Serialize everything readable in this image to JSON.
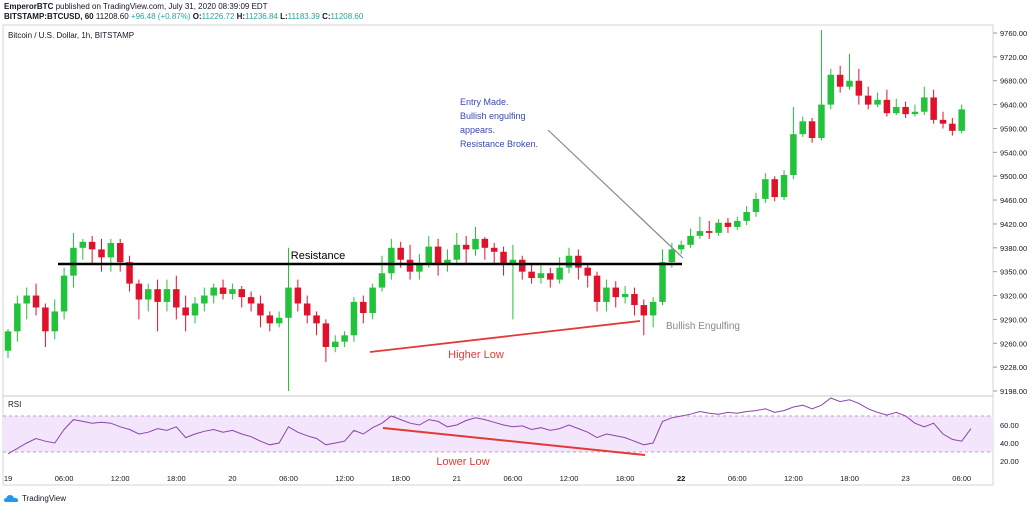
{
  "header": {
    "author": "EmperorBTC",
    "published": "published on TradingView.com, July 31, 2020 08:39:09 EDT",
    "symbol": "BITSTAMP:BTCUSD, 60",
    "price": "11208.60",
    "change": "+96.48 (+0.87%)",
    "o_label": "O:",
    "o_value": "11226.72",
    "h_label": "H:",
    "h_value": "11236.84",
    "l_label": "L:",
    "l_value": "11183.39",
    "c_label": "C:",
    "c_value": "11208.60"
  },
  "chart_title": "Bitcoin / U.S. Dollar, 1h, BITSTAMP",
  "branding": "TradingView",
  "colors": {
    "up": "#22c23b",
    "down": "#e0112b",
    "rsi_line": "#8e44ad",
    "rsi_band": "#f3e5fb",
    "annotation_blue": "#3949ab",
    "annotation_red": "#e53935"
  },
  "annotations": {
    "resistance": "Resistance",
    "entry_1": "Entry Made.",
    "entry_2": "Bullish engulfing",
    "entry_3": "appears.",
    "entry_4": "Resistance Broken.",
    "bullish_engulfing": "Bullish Engulfing",
    "higher_low": "Higher Low",
    "lower_low": "Lower Low",
    "rsi_label": "RSI"
  },
  "chart_data": [
    {
      "type": "candlestick",
      "title": "Bitcoin / U.S. Dollar, 1h, BITSTAMP",
      "y_ticks": [
        9198,
        9228,
        9260,
        9290,
        9320,
        9350,
        9380,
        9420,
        9460,
        9500,
        9540,
        9590,
        9640,
        9680,
        9720,
        9760
      ],
      "y_tick_labels": [
        "9198.00",
        "9228.00",
        "9260.00",
        "9290.00",
        "9320.00",
        "9350.00",
        "9380.00",
        "9420.00",
        "9460.00",
        "9500.00",
        "9540.00",
        "9590.00",
        "9640.00",
        "9680.00",
        "9720.00",
        "9760.00"
      ],
      "x_tick_labels": [
        "19",
        "06:00",
        "12:00",
        "18:00",
        "20",
        "06:00",
        "12:00",
        "18:00",
        "21",
        "06:00",
        "12:00",
        "18:00",
        "22",
        "06:00",
        "12:00",
        "18:00",
        "23",
        "06:00"
      ],
      "x_tick_index": [
        0,
        6,
        12,
        18,
        24,
        30,
        36,
        42,
        48,
        54,
        60,
        66,
        72,
        78,
        84,
        90,
        96,
        102
      ],
      "resistance_level": 9390,
      "candles": [
        [
          9250,
          9275,
          9240,
          9278
        ],
        [
          9275,
          9310,
          9262,
          9320
        ],
        [
          9310,
          9320,
          9290,
          9330
        ],
        [
          9320,
          9305,
          9295,
          9335
        ],
        [
          9305,
          9275,
          9255,
          9310
        ],
        [
          9275,
          9300,
          9265,
          9315
        ],
        [
          9300,
          9345,
          9290,
          9355
        ],
        [
          9345,
          9380,
          9330,
          9405
        ],
        [
          9380,
          9390,
          9365,
          9395
        ],
        [
          9390,
          9378,
          9360,
          9400
        ],
        [
          9378,
          9368,
          9350,
          9395
        ],
        [
          9368,
          9388,
          9350,
          9395
        ],
        [
          9388,
          9362,
          9350,
          9395
        ],
        [
          9362,
          9335,
          9325,
          9370
        ],
        [
          9335,
          9315,
          9290,
          9340
        ],
        [
          9315,
          9328,
          9300,
          9335
        ],
        [
          9328,
          9312,
          9275,
          9340
        ],
        [
          9312,
          9328,
          9300,
          9340
        ],
        [
          9328,
          9305,
          9290,
          9345
        ],
        [
          9305,
          9295,
          9275,
          9320
        ],
        [
          9295,
          9310,
          9285,
          9318
        ],
        [
          9310,
          9320,
          9300,
          9330
        ],
        [
          9320,
          9330,
          9310,
          9335
        ],
        [
          9330,
          9322,
          9315,
          9340
        ],
        [
          9322,
          9328,
          9315,
          9335
        ],
        [
          9328,
          9318,
          9305,
          9332
        ],
        [
          9318,
          9310,
          9300,
          9325
        ],
        [
          9310,
          9295,
          9280,
          9320
        ],
        [
          9295,
          9285,
          9275,
          9300
        ],
        [
          9285,
          9292,
          9280,
          9300
        ],
        [
          9292,
          9330,
          9198,
          9380
        ],
        [
          9330,
          9310,
          9300,
          9340
        ],
        [
          9310,
          9295,
          9285,
          9320
        ],
        [
          9295,
          9285,
          9270,
          9300
        ],
        [
          9285,
          9255,
          9235,
          9290
        ],
        [
          9255,
          9262,
          9248,
          9270
        ],
        [
          9262,
          9270,
          9255,
          9275
        ],
        [
          9270,
          9312,
          9262,
          9318
        ],
        [
          9312,
          9298,
          9285,
          9320
        ],
        [
          9298,
          9330,
          9290,
          9335
        ],
        [
          9330,
          9348,
          9325,
          9370
        ],
        [
          9348,
          9380,
          9340,
          9395
        ],
        [
          9380,
          9365,
          9355,
          9390
        ],
        [
          9365,
          9350,
          9340,
          9385
        ],
        [
          9350,
          9360,
          9340,
          9372
        ],
        [
          9360,
          9382,
          9355,
          9400
        ],
        [
          9382,
          9360,
          9345,
          9395
        ],
        [
          9360,
          9365,
          9350,
          9378
        ],
        [
          9365,
          9385,
          9358,
          9405
        ],
        [
          9385,
          9378,
          9360,
          9400
        ],
        [
          9378,
          9395,
          9370,
          9415
        ],
        [
          9395,
          9380,
          9365,
          9398
        ],
        [
          9380,
          9375,
          9360,
          9388
        ],
        [
          9375,
          9360,
          9345,
          9382
        ],
        [
          9360,
          9365,
          9290,
          9385
        ],
        [
          9365,
          9350,
          9340,
          9370
        ],
        [
          9350,
          9342,
          9335,
          9360
        ],
        [
          9342,
          9348,
          9335,
          9358
        ],
        [
          9348,
          9340,
          9330,
          9355
        ],
        [
          9340,
          9355,
          9335,
          9368
        ],
        [
          9355,
          9370,
          9348,
          9380
        ],
        [
          9370,
          9355,
          9340,
          9378
        ],
        [
          9355,
          9345,
          9330,
          9360
        ],
        [
          9345,
          9312,
          9300,
          9350
        ],
        [
          9312,
          9330,
          9300,
          9340
        ],
        [
          9330,
          9318,
          9305,
          9338
        ],
        [
          9318,
          9322,
          9310,
          9332
        ],
        [
          9322,
          9308,
          9295,
          9330
        ],
        [
          9308,
          9295,
          9270,
          9315
        ],
        [
          9295,
          9312,
          9280,
          9318
        ],
        [
          9312,
          9362,
          9308,
          9378
        ],
        [
          9362,
          9378,
          9355,
          9388
        ],
        [
          9378,
          9385,
          9372,
          9392
        ],
        [
          9385,
          9400,
          9380,
          9412
        ],
        [
          9400,
          9408,
          9395,
          9432
        ],
        [
          9408,
          9405,
          9395,
          9425
        ],
        [
          9405,
          9422,
          9400,
          9428
        ],
        [
          9422,
          9415,
          9405,
          9430
        ],
        [
          9415,
          9425,
          9410,
          9432
        ],
        [
          9425,
          9440,
          9418,
          9450
        ],
        [
          9440,
          9462,
          9432,
          9472
        ],
        [
          9462,
          9495,
          9455,
          9505
        ],
        [
          9495,
          9465,
          9458,
          9500
        ],
        [
          9465,
          9502,
          9460,
          9510
        ],
        [
          9502,
          9578,
          9495,
          9635
        ],
        [
          9578,
          9605,
          9572,
          9615
        ],
        [
          9605,
          9570,
          9560,
          9612
        ],
        [
          9570,
          9640,
          9565,
          9765
        ],
        [
          9640,
          9690,
          9630,
          9700
        ],
        [
          9690,
          9670,
          9660,
          9705
        ],
        [
          9670,
          9680,
          9665,
          9725
        ],
        [
          9680,
          9655,
          9640,
          9700
        ],
        [
          9655,
          9640,
          9630,
          9670
        ],
        [
          9640,
          9648,
          9635,
          9660
        ],
        [
          9648,
          9622,
          9615,
          9665
        ],
        [
          9622,
          9635,
          9618,
          9650
        ],
        [
          9635,
          9620,
          9612,
          9645
        ],
        [
          9620,
          9625,
          9615,
          9640
        ],
        [
          9625,
          9652,
          9618,
          9670
        ],
        [
          9652,
          9608,
          9600,
          9665
        ],
        [
          9608,
          9600,
          9590,
          9625
        ],
        [
          9600,
          9585,
          9575,
          9612
        ],
        [
          9585,
          9630,
          9580,
          9640
        ]
      ]
    },
    {
      "type": "line",
      "title": "RSI",
      "y_ticks": [
        20,
        40,
        60
      ],
      "y_tick_labels": [
        "20.00",
        "40.00",
        "60.00"
      ],
      "bands": [
        30,
        70
      ],
      "values": [
        28,
        34,
        40,
        45,
        42,
        40,
        55,
        66,
        64,
        62,
        63,
        62,
        58,
        55,
        50,
        52,
        56,
        54,
        58,
        46,
        50,
        53,
        55,
        52,
        54,
        50,
        47,
        42,
        38,
        40,
        58,
        52,
        48,
        45,
        38,
        40,
        42,
        54,
        50,
        57,
        62,
        70,
        66,
        62,
        60,
        66,
        64,
        58,
        60,
        65,
        68,
        66,
        63,
        60,
        58,
        59,
        55,
        57,
        54,
        56,
        60,
        56,
        52,
        46,
        50,
        48,
        46,
        42,
        38,
        40,
        64,
        68,
        70,
        72,
        75,
        73,
        72,
        74,
        73,
        75,
        76,
        78,
        74,
        76,
        80,
        82,
        78,
        82,
        90,
        86,
        88,
        84,
        78,
        74,
        71,
        74,
        70,
        62,
        58,
        62,
        50,
        44,
        42,
        56
      ]
    }
  ]
}
